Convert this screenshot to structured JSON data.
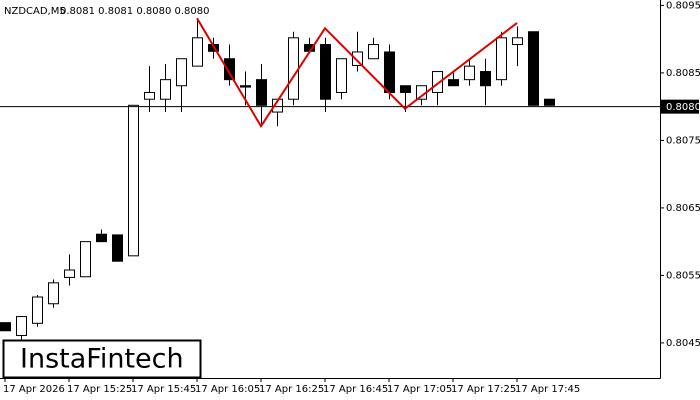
{
  "chart_data": {
    "type": "candlestick",
    "title": "NZDCAD,M5",
    "subtitle": "0.8081 0.8081 0.8080 0.8080",
    "watermark": "InstaFintech",
    "categories": [
      "17 Apr 2026",
      null,
      null,
      null,
      "17 Apr 15:25",
      null,
      null,
      null,
      "17 Apr 15:45",
      null,
      null,
      null,
      "17 Apr 16:05",
      null,
      null,
      null,
      "17 Apr 16:25",
      null,
      null,
      null,
      "17 Apr 16:45",
      null,
      null,
      null,
      "17 Apr 17:05",
      null,
      null,
      null,
      "17 Apr 17:25",
      null,
      null,
      null,
      "17 Apr 17:45",
      null,
      null
    ],
    "open": [
      0.8048,
      0.80461,
      0.80479,
      0.80508,
      0.80547,
      0.80548,
      0.80611,
      0.8061,
      0.80579,
      0.80811,
      0.80811,
      0.80831,
      0.8086,
      0.80892,
      0.80871,
      0.80831,
      0.8084,
      0.80792,
      0.80811,
      0.80892,
      0.80892,
      0.80821,
      0.80861,
      0.80871,
      0.80881,
      0.80831,
      0.80811,
      0.80821,
      0.8084,
      0.8084,
      0.80852,
      0.8084,
      0.80892,
      0.80911,
      0.80811
    ],
    "high": [
      0.8048,
      0.80489,
      0.80521,
      0.80544,
      0.80581,
      0.806,
      0.80618,
      0.8061,
      0.80802,
      0.8086,
      0.80863,
      0.80871,
      0.80931,
      0.80902,
      0.80892,
      0.80852,
      0.80863,
      0.80811,
      0.80911,
      0.80902,
      0.80902,
      0.80871,
      0.80911,
      0.80902,
      0.80892,
      0.80831,
      0.80831,
      0.80852,
      0.80852,
      0.80871,
      0.80871,
      0.80911,
      0.80919,
      0.80911,
      0.80811
    ],
    "low": [
      0.80468,
      0.80455,
      0.80474,
      0.80502,
      0.80535,
      0.80548,
      0.806,
      0.80571,
      0.80579,
      0.80792,
      0.80792,
      0.80792,
      0.8086,
      0.80871,
      0.80831,
      0.80802,
      0.80771,
      0.80771,
      0.80802,
      0.80882,
      0.80792,
      0.80811,
      0.80852,
      0.80871,
      0.80811,
      0.80792,
      0.80802,
      0.80802,
      0.80831,
      0.80831,
      0.80802,
      0.80831,
      0.8086,
      0.80802,
      0.80802
    ],
    "close": [
      0.80468,
      0.80489,
      0.80518,
      0.80539,
      0.80558,
      0.806,
      0.806,
      0.80571,
      0.80802,
      0.80821,
      0.8084,
      0.80871,
      0.80902,
      0.80882,
      0.8084,
      0.80829,
      0.80802,
      0.80811,
      0.80902,
      0.80882,
      0.80811,
      0.80871,
      0.80881,
      0.80892,
      0.80821,
      0.80821,
      0.80831,
      0.80852,
      0.80831,
      0.8086,
      0.80831,
      0.80902,
      0.80902,
      0.80802,
      0.80802
    ],
    "up_color": "#ffffff",
    "down_color": "#000000",
    "ylim": [
      0.80398,
      0.80958
    ],
    "yticks": [
      0.8045,
      0.8055,
      0.8065,
      0.8075,
      0.8085,
      0.8095
    ],
    "current_price": {
      "value": 0.808,
      "label": "0.8080"
    },
    "pattern": {
      "x": [
        12,
        16,
        20,
        25,
        32
      ],
      "values": [
        0.80931,
        0.80771,
        0.80916,
        0.80797,
        0.80924
      ],
      "color": "#e00000"
    },
    "grid": false
  }
}
